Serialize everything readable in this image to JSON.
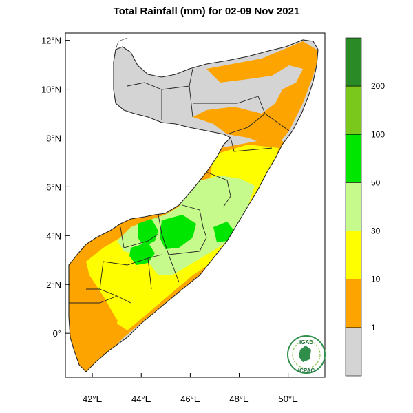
{
  "title": "Total Rainfall (mm) for 02-09 Nov 2021",
  "map": {
    "lat_ticks": [
      {
        "label": "12°N",
        "value": 12
      },
      {
        "label": "10°N",
        "value": 10
      },
      {
        "label": "8°N",
        "value": 8
      },
      {
        "label": "6°N",
        "value": 6
      },
      {
        "label": "4°N",
        "value": 4
      },
      {
        "label": "2°N",
        "value": 2
      },
      {
        "label": "0°",
        "value": 0
      }
    ],
    "lon_ticks": [
      {
        "label": "42°E",
        "value": 42
      },
      {
        "label": "44°E",
        "value": 44
      },
      {
        "label": "46°E",
        "value": 46
      },
      {
        "label": "48°E",
        "value": 48
      },
      {
        "label": "50°E",
        "value": 50
      }
    ],
    "lon_range": [
      40.9,
      51.5
    ],
    "lat_range": [
      -1.8,
      12.3
    ]
  },
  "legend": {
    "boundaries": [
      "1",
      "10",
      "30",
      "50",
      "100",
      "200"
    ],
    "colors": [
      "#d4d4d4",
      "#fda400",
      "#fefe00",
      "#c7fa8c",
      "#00e600",
      "#7ac81c",
      "#2a8a25"
    ]
  },
  "logo": {
    "top_text": "IGAD",
    "bottom_text": "ICPAC"
  }
}
